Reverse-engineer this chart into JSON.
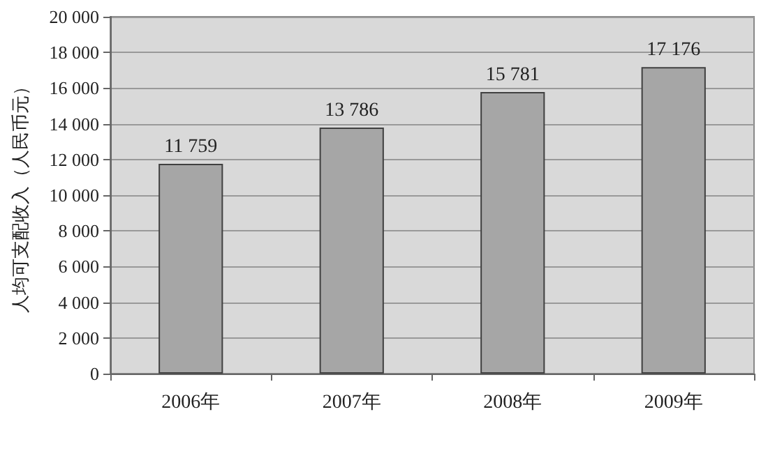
{
  "chart_data": {
    "type": "bar",
    "ylabel": "人均可支配收入（人民币元）",
    "categories": [
      "2006年",
      "2007年",
      "2008年",
      "2009年"
    ],
    "values": [
      11759,
      13786,
      15781,
      17176
    ],
    "value_labels": [
      "11 759",
      "13 786",
      "15 781",
      "17 176"
    ],
    "color": "#a6a6a6",
    "ylim": [
      0,
      20000
    ],
    "yticks": [
      {
        "value": 0,
        "label": "0"
      },
      {
        "value": 2000,
        "label": "2 000"
      },
      {
        "value": 4000,
        "label": "4 000"
      },
      {
        "value": 6000,
        "label": "6 000"
      },
      {
        "value": 8000,
        "label": "8 000"
      },
      {
        "value": 10000,
        "label": "10 000"
      },
      {
        "value": 12000,
        "label": "12 000"
      },
      {
        "value": 14000,
        "label": "14 000"
      },
      {
        "value": 16000,
        "label": "16 000"
      },
      {
        "value": 18000,
        "label": "18 000"
      },
      {
        "value": 20000,
        "label": "20 000"
      }
    ],
    "grid": "y"
  }
}
